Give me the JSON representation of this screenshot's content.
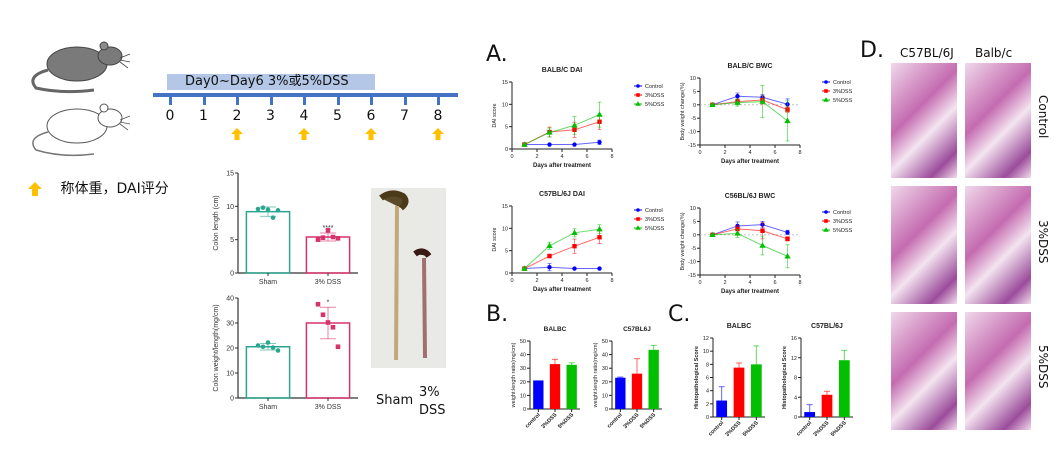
{
  "timeline": {
    "treatment_label": "Day0~Day6 3%或5%DSS",
    "days": [
      "0",
      "1",
      "2",
      "3",
      "4",
      "5",
      "6",
      "7",
      "8"
    ],
    "arrow_days": [
      "2",
      "4",
      "6",
      "8"
    ],
    "arrow_color": "#ffc000",
    "line_color": "#4472c4",
    "bar_color": "#b4c7e7"
  },
  "legend_note": {
    "icon": "up-arrow-icon",
    "text": "称体重，DAI评分"
  },
  "photo": {
    "labels": [
      "Sham",
      "3%",
      "DSS"
    ]
  },
  "panels": {
    "A": "A.",
    "B": "B.",
    "C": "C.",
    "D": "D."
  },
  "histology": {
    "columns": [
      "C57BL/6J",
      "Balb/c"
    ],
    "rows": [
      "Control",
      "3%DSS",
      "5%DSS"
    ]
  },
  "chart_data": [
    {
      "id": "colon-length",
      "type": "bar",
      "title": "",
      "ylabel": "Colon length (cm)",
      "categories": [
        "Sham",
        "3% DSS"
      ],
      "values": [
        9.2,
        5.4
      ],
      "errors": [
        0.7,
        0.6
      ],
      "points": [
        [
          9.6,
          9.8,
          9.5,
          8.3,
          9.4
        ],
        [
          5.0,
          5.3,
          6.4,
          5.4,
          5.2
        ]
      ],
      "ylim": [
        0,
        15
      ],
      "yticks": [
        0,
        5,
        10,
        15
      ],
      "colors": [
        "#2ba58f",
        "#d6336c"
      ],
      "annotations": [
        "",
        "****"
      ]
    },
    {
      "id": "colon-weight-length",
      "type": "bar",
      "title": "",
      "ylabel": "Colon weight/length(mg/cm)",
      "categories": [
        "Sham",
        "3% DSS"
      ],
      "values": [
        20.5,
        30
      ],
      "errors": [
        1.3,
        6.3
      ],
      "points": [
        [
          21,
          20.5,
          22.2,
          20.2,
          19
        ],
        [
          37.5,
          33.3,
          30.2,
          28.3,
          20.5
        ]
      ],
      "ylim": [
        0,
        40
      ],
      "yticks": [
        0,
        10,
        20,
        30,
        40
      ],
      "colors": [
        "#2ba58f",
        "#d6336c"
      ],
      "annotations": [
        "",
        "*"
      ]
    },
    {
      "id": "balbc-dai",
      "type": "line",
      "title": "BALB/C DAI",
      "xlabel": "Days after treatment",
      "ylabel": "DAI score",
      "x": [
        1,
        3,
        5,
        7
      ],
      "xlim": [
        0,
        8
      ],
      "xticks": [
        0,
        2,
        4,
        6,
        8
      ],
      "ylim": [
        0,
        15
      ],
      "yticks": [
        0,
        5,
        10,
        15
      ],
      "series": [
        {
          "name": "Control",
          "color": "#0000ff",
          "marker": "circle",
          "values": [
            1,
            1,
            1,
            1.5
          ],
          "errors": [
            0,
            0,
            0,
            0.5
          ]
        },
        {
          "name": "3%DSS",
          "color": "#ff0000",
          "marker": "square",
          "values": [
            1,
            3.8,
            4.3,
            6.1
          ],
          "errors": [
            0,
            1.1,
            1.7,
            1.7
          ]
        },
        {
          "name": "5%DSS",
          "color": "#00c000",
          "marker": "triangle",
          "values": [
            1,
            3.7,
            5.3,
            7.7
          ],
          "errors": [
            0,
            1.0,
            2.0,
            2.8
          ]
        }
      ],
      "legend": "right"
    },
    {
      "id": "balbc-bwc",
      "type": "line",
      "title": "BALB/C BWC",
      "xlabel": "Days after treatment",
      "ylabel": "Body weight change(%)",
      "x": [
        1,
        3,
        5,
        7
      ],
      "xlim": [
        0,
        8
      ],
      "xticks": [
        0,
        2,
        4,
        6,
        8
      ],
      "ylim": [
        -15,
        10
      ],
      "yticks": [
        -15,
        -10,
        -5,
        0,
        5,
        10
      ],
      "series": [
        {
          "name": "Control",
          "color": "#0000ff",
          "marker": "circle",
          "values": [
            0,
            3.2,
            2.8,
            0.2
          ],
          "errors": [
            0,
            1.2,
            1.0,
            2.0
          ]
        },
        {
          "name": "3%DSS",
          "color": "#ff0000",
          "marker": "square",
          "values": [
            0,
            1.2,
            1.8,
            -1.8
          ],
          "errors": [
            0,
            1.0,
            1.5,
            1.0
          ]
        },
        {
          "name": "5%DSS",
          "color": "#00c000",
          "marker": "triangle",
          "values": [
            0,
            0.8,
            1.2,
            -6
          ],
          "errors": [
            0,
            1.3,
            6.0,
            7.5
          ]
        }
      ],
      "legend": "right"
    },
    {
      "id": "c57-dai",
      "type": "line",
      "title": "C57BL/6J DAI",
      "xlabel": "Days after treatment",
      "ylabel": "DAI score",
      "x": [
        1,
        3,
        5,
        7
      ],
      "xlim": [
        0,
        8
      ],
      "xticks": [
        0,
        2,
        4,
        6,
        8
      ],
      "ylim": [
        0,
        15
      ],
      "yticks": [
        0,
        5,
        10,
        15
      ],
      "series": [
        {
          "name": "Control",
          "color": "#0000ff",
          "marker": "circle",
          "values": [
            1,
            1.3,
            1,
            1
          ],
          "errors": [
            0,
            0.8,
            0,
            0
          ]
        },
        {
          "name": "3%DSS",
          "color": "#ff0000",
          "marker": "square",
          "values": [
            1,
            3.8,
            6,
            8
          ],
          "errors": [
            0,
            0.4,
            1.6,
            1.4
          ]
        },
        {
          "name": "5%DSS",
          "color": "#00c000",
          "marker": "triangle",
          "values": [
            1,
            6.1,
            9,
            9.8
          ],
          "errors": [
            0,
            0.8,
            0.9,
            1.0
          ]
        }
      ],
      "legend": "right"
    },
    {
      "id": "c57-bwc",
      "type": "line",
      "title": "C56BL/6J BWC",
      "xlabel": "Days after treatment",
      "ylabel": "Body weight change(%)",
      "x": [
        1,
        3,
        5,
        7
      ],
      "xlim": [
        0,
        8
      ],
      "xticks": [
        0,
        2,
        4,
        6,
        8
      ],
      "ylim": [
        -15,
        10
      ],
      "yticks": [
        -15,
        -10,
        -5,
        0,
        5,
        10
      ],
      "series": [
        {
          "name": "Control",
          "color": "#0000ff",
          "marker": "circle",
          "values": [
            0,
            3.3,
            3.8,
            0.9
          ],
          "errors": [
            0,
            1.5,
            1.2,
            0.8
          ]
        },
        {
          "name": "3%DSS",
          "color": "#ff0000",
          "marker": "square",
          "values": [
            0,
            2.2,
            1.5,
            -1.5
          ],
          "errors": [
            0,
            1.2,
            3.0,
            0.8
          ]
        },
        {
          "name": "5%DSS",
          "color": "#00c000",
          "marker": "triangle",
          "values": [
            0,
            0.5,
            -4,
            -8
          ],
          "errors": [
            0,
            1.5,
            3.5,
            4.3
          ]
        }
      ],
      "legend": "right"
    },
    {
      "id": "balbc-ratio",
      "type": "bar",
      "title": "BALBC",
      "ylabel": "weight:length ratio(mg/cm)",
      "categories": [
        "control",
        "3%DSS",
        "5%DSS"
      ],
      "values": [
        21,
        33,
        32.5
      ],
      "errors": [
        0,
        3.5,
        1.5
      ],
      "ylim": [
        0,
        50
      ],
      "yticks": [
        0,
        10,
        20,
        30,
        40,
        50
      ],
      "colors": [
        "#0000ff",
        "#ff0000",
        "#00c000"
      ]
    },
    {
      "id": "c57-ratio",
      "type": "bar",
      "title": "C57BL6J",
      "ylabel": "weight:length ratio(mg/cm)",
      "categories": [
        "control",
        "3%DSS",
        "5%DSS"
      ],
      "values": [
        23,
        26,
        43.5
      ],
      "errors": [
        0.5,
        11,
        3.3
      ],
      "ylim": [
        0,
        50
      ],
      "yticks": [
        0,
        10,
        20,
        30,
        40,
        50
      ],
      "colors": [
        "#0000ff",
        "#ff0000",
        "#00c000"
      ]
    },
    {
      "id": "balbc-histo",
      "type": "bar",
      "title": "BALBC",
      "ylabel": "Histopathological Score",
      "categories": [
        "control",
        "3%DSS",
        "5%DSS"
      ],
      "values": [
        2.5,
        7.5,
        8
      ],
      "errors": [
        2.1,
        0.7,
        2.8
      ],
      "ylim": [
        0,
        12
      ],
      "yticks": [
        0,
        2,
        4,
        6,
        8,
        10,
        12
      ],
      "colors": [
        "#0000ff",
        "#ff0000",
        "#00c000"
      ]
    },
    {
      "id": "c57-histo",
      "type": "bar",
      "title": "C57BL/6J",
      "ylabel": "Histopathological Score",
      "categories": [
        "control",
        "3%DSS",
        "5%DSS"
      ],
      "values": [
        1,
        4.5,
        11.5
      ],
      "errors": [
        1.5,
        0.7,
        2.0
      ],
      "ylim": [
        0,
        16
      ],
      "yticks": [
        0,
        4,
        8,
        12,
        16
      ],
      "colors": [
        "#0000ff",
        "#ff0000",
        "#00c000"
      ]
    }
  ]
}
